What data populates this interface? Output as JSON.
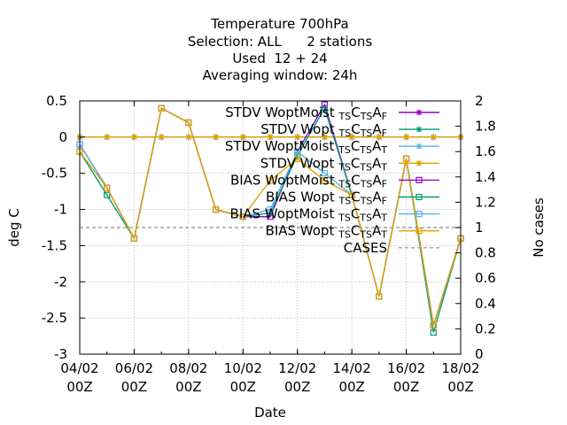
{
  "chart_data": {
    "type": "line",
    "title_lines": [
      "Temperature 700hPa",
      "Selection: ALL      2 stations",
      "Used  12 + 24",
      "Averaging window: 24h"
    ],
    "xlabel": "Date",
    "ylabel": "deg C",
    "y2label": "No cases",
    "x": [
      0,
      1,
      2,
      3,
      4,
      5,
      6,
      7,
      8,
      9,
      10,
      11,
      12,
      13,
      14
    ],
    "xlim": [
      0,
      14
    ],
    "ylim": [
      -3,
      0.5
    ],
    "y2lim": [
      0,
      2
    ],
    "x_ticks": [
      {
        "x": 0,
        "line1": "04/02",
        "line2": "00Z"
      },
      {
        "x": 2,
        "line1": "06/02",
        "line2": "00Z"
      },
      {
        "x": 4,
        "line1": "08/02",
        "line2": "00Z"
      },
      {
        "x": 6,
        "line1": "10/02",
        "line2": "00Z"
      },
      {
        "x": 8,
        "line1": "12/02",
        "line2": "00Z"
      },
      {
        "x": 10,
        "line1": "14/02",
        "line2": "00Z"
      },
      {
        "x": 12,
        "line1": "16/02",
        "line2": "00Z"
      },
      {
        "x": 14,
        "line1": "18/02",
        "line2": "00Z"
      }
    ],
    "y_ticks": [
      "0.5",
      "0",
      "-0.5",
      "-1",
      "-1.5",
      "-2",
      "-2.5",
      "-3"
    ],
    "y_tick_values": [
      0.5,
      0,
      -0.5,
      -1,
      -1.5,
      -2,
      -2.5,
      -3
    ],
    "y2_ticks": [
      "2",
      "1.8",
      "1.6",
      "1.4",
      "1.2",
      "1",
      "0.8",
      "0.6",
      "0.4",
      "0.2",
      "0"
    ],
    "y2_tick_values": [
      2,
      1.8,
      1.6,
      1.4,
      1.2,
      1,
      0.8,
      0.6,
      0.4,
      0.2,
      0
    ],
    "grid": true,
    "legend_position": "top-right",
    "series": [
      {
        "name": "STDV WoptMoist TS CTS AF",
        "base": "STDV WoptMoist",
        "sub1": "TS",
        "mid": "C",
        "sub2": "TS",
        "tail": "A",
        "sub3": "F",
        "color": "#9400d3",
        "marker": "star",
        "axis": "y",
        "values": [
          0,
          0,
          0,
          0,
          0,
          0,
          0,
          0,
          0,
          0,
          0,
          0,
          0,
          0,
          0
        ]
      },
      {
        "name": "STDV Wopt TS CTS AF",
        "base": "STDV Wopt",
        "sub1": "TS",
        "mid": "C",
        "sub2": "TS",
        "tail": "A",
        "sub3": "F",
        "color": "#009e73",
        "marker": "star",
        "axis": "y",
        "values": [
          0,
          0,
          0,
          0,
          0,
          0,
          0,
          0,
          0,
          0,
          0,
          0,
          0,
          0,
          0
        ]
      },
      {
        "name": "STDV WoptMoist TS CTS AT",
        "base": "STDV WoptMoist",
        "sub1": "TS",
        "mid": "C",
        "sub2": "TS",
        "tail": "A",
        "sub3": "T",
        "color": "#56b4e9",
        "marker": "star",
        "axis": "y",
        "values": [
          0,
          0,
          0,
          0,
          0,
          0,
          0,
          0,
          0,
          0,
          0,
          0,
          0,
          0,
          0
        ]
      },
      {
        "name": "STDV Wopt TS CTS AT",
        "base": "STDV Wopt",
        "sub1": "TS",
        "mid": "C",
        "sub2": "TS",
        "tail": "A",
        "sub3": "T",
        "color": "#e69f00",
        "marker": "star",
        "axis": "y",
        "values": [
          0,
          0,
          0,
          0,
          0,
          0,
          0,
          0,
          0,
          0,
          0,
          0,
          0,
          0,
          0
        ]
      },
      {
        "name": "BIAS WoptMoist TS CTS AF",
        "base": "BIAS WoptMoist",
        "sub1": "TS",
        "mid": "C",
        "sub2": "TS",
        "tail": "A",
        "sub3": "F",
        "color": "#9400d3",
        "marker": "square",
        "axis": "y",
        "values": [
          -0.1,
          -0.7,
          -1.4,
          0.4,
          0.2,
          -1.0,
          -1.1,
          -1.1,
          -0.2,
          0.45,
          -0.8,
          -2.2,
          -0.3,
          -2.6,
          -1.4
        ]
      },
      {
        "name": "BIAS Wopt TS CTS AF",
        "base": "BIAS Wopt",
        "sub1": "TS",
        "mid": "C",
        "sub2": "TS",
        "tail": "A",
        "sub3": "F",
        "color": "#009e73",
        "marker": "square",
        "axis": "y",
        "values": [
          -0.2,
          -0.8,
          -1.4,
          0.4,
          0.2,
          -1.0,
          -1.1,
          -1.05,
          -0.25,
          0.4,
          -0.8,
          -2.2,
          -0.3,
          -2.7,
          -1.4
        ]
      },
      {
        "name": "BIAS WoptMoist TS CTS AT",
        "base": "BIAS WoptMoist",
        "sub1": "TS",
        "mid": "C",
        "sub2": "TS",
        "tail": "A",
        "sub3": "T",
        "color": "#56b4e9",
        "marker": "square",
        "axis": "y",
        "values": [
          -0.1,
          -0.7,
          -1.4,
          0.4,
          0.2,
          -1.0,
          -1.1,
          -1.0,
          -0.2,
          -0.5,
          -0.8,
          -2.2,
          -0.3,
          -2.6,
          -1.4
        ]
      },
      {
        "name": "BIAS Wopt TS CTS AT",
        "base": "BIAS Wopt",
        "sub1": "TS",
        "mid": "C",
        "sub2": "TS",
        "tail": "A",
        "sub3": "T",
        "color": "#e69f00",
        "marker": "square",
        "axis": "y",
        "values": [
          -0.2,
          -0.7,
          -1.4,
          0.4,
          0.2,
          -1.0,
          -1.1,
          -0.6,
          -0.3,
          -0.6,
          -0.8,
          -2.2,
          -0.3,
          -2.6,
          -1.4
        ]
      },
      {
        "name": "CASES",
        "color": "#a0a0a0",
        "marker": "none",
        "dashed": true,
        "axis": "y2",
        "values": [
          1,
          1,
          1,
          1,
          1,
          1,
          1,
          1,
          1,
          1,
          1,
          1,
          1,
          1,
          1
        ]
      }
    ]
  }
}
